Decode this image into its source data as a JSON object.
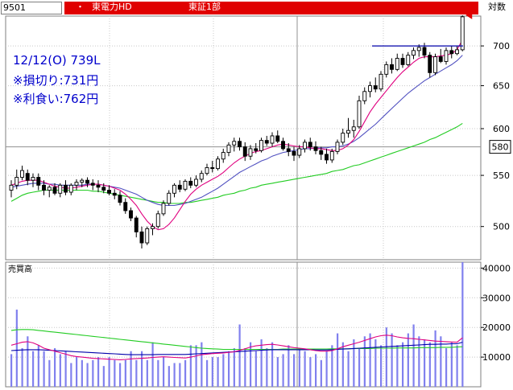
{
  "header": {
    "code": "9501",
    "bullet": "・",
    "name": "東電力HD",
    "market": "東証1部",
    "scale": "対数"
  },
  "annotations": {
    "line1": "12/12(O) 739L",
    "line2": "※損切り:731円",
    "line3": "※利食い:762円",
    "current_price_label": "580"
  },
  "volume_panel": {
    "title": "売買高"
  },
  "colors": {
    "accent": "#e00000",
    "bar_up_outline": "#000000",
    "bar_down": "#000000",
    "ma_short": "#e0007f",
    "ma_mid": "#5050c0",
    "ma_long": "#22cc22",
    "volume_bar": "#8080ee",
    "resistance": "#0000aa",
    "annotation_text": "#0000cc"
  },
  "chart_data": [
    {
      "type": "candlestick",
      "scale": "log",
      "ylim": [
        470,
        740
      ],
      "yticks": [
        500,
        550,
        600,
        650,
        700
      ],
      "highlight_price": 580,
      "resistance_level": 700,
      "candles": [
        {
          "o": 535,
          "h": 545,
          "l": 528,
          "c": 540
        },
        {
          "o": 540,
          "h": 556,
          "l": 536,
          "c": 548
        },
        {
          "o": 548,
          "h": 560,
          "l": 545,
          "c": 555
        },
        {
          "o": 552,
          "h": 556,
          "l": 540,
          "c": 545
        },
        {
          "o": 545,
          "h": 552,
          "l": 538,
          "c": 548
        },
        {
          "o": 548,
          "h": 552,
          "l": 535,
          "c": 540
        },
        {
          "o": 540,
          "h": 545,
          "l": 530,
          "c": 535
        },
        {
          "o": 535,
          "h": 540,
          "l": 528,
          "c": 538
        },
        {
          "o": 538,
          "h": 542,
          "l": 530,
          "c": 532
        },
        {
          "o": 532,
          "h": 542,
          "l": 528,
          "c": 540
        },
        {
          "o": 540,
          "h": 545,
          "l": 530,
          "c": 533
        },
        {
          "o": 533,
          "h": 542,
          "l": 530,
          "c": 540
        },
        {
          "o": 540,
          "h": 546,
          "l": 535,
          "c": 543
        },
        {
          "o": 543,
          "h": 547,
          "l": 538,
          "c": 545
        },
        {
          "o": 545,
          "h": 548,
          "l": 538,
          "c": 542
        },
        {
          "o": 542,
          "h": 546,
          "l": 535,
          "c": 540
        },
        {
          "o": 540,
          "h": 545,
          "l": 533,
          "c": 538
        },
        {
          "o": 538,
          "h": 542,
          "l": 532,
          "c": 535
        },
        {
          "o": 535,
          "h": 540,
          "l": 530,
          "c": 532
        },
        {
          "o": 532,
          "h": 536,
          "l": 526,
          "c": 530
        },
        {
          "o": 530,
          "h": 534,
          "l": 520,
          "c": 523
        },
        {
          "o": 523,
          "h": 527,
          "l": 512,
          "c": 515
        },
        {
          "o": 515,
          "h": 518,
          "l": 505,
          "c": 508
        },
        {
          "o": 508,
          "h": 510,
          "l": 490,
          "c": 495
        },
        {
          "o": 495,
          "h": 500,
          "l": 480,
          "c": 485
        },
        {
          "o": 485,
          "h": 500,
          "l": 483,
          "c": 498
        },
        {
          "o": 498,
          "h": 503,
          "l": 492,
          "c": 500
        },
        {
          "o": 500,
          "h": 515,
          "l": 498,
          "c": 512
        },
        {
          "o": 512,
          "h": 525,
          "l": 510,
          "c": 522
        },
        {
          "o": 522,
          "h": 535,
          "l": 520,
          "c": 532
        },
        {
          "o": 532,
          "h": 542,
          "l": 528,
          "c": 540
        },
        {
          "o": 540,
          "h": 545,
          "l": 533,
          "c": 536
        },
        {
          "o": 536,
          "h": 546,
          "l": 534,
          "c": 544
        },
        {
          "o": 544,
          "h": 548,
          "l": 537,
          "c": 540
        },
        {
          "o": 540,
          "h": 550,
          "l": 538,
          "c": 546
        },
        {
          "o": 546,
          "h": 555,
          "l": 543,
          "c": 552
        },
        {
          "o": 552,
          "h": 562,
          "l": 550,
          "c": 558
        },
        {
          "o": 558,
          "h": 565,
          "l": 553,
          "c": 557
        },
        {
          "o": 557,
          "h": 570,
          "l": 555,
          "c": 567
        },
        {
          "o": 567,
          "h": 578,
          "l": 563,
          "c": 574
        },
        {
          "o": 574,
          "h": 585,
          "l": 570,
          "c": 582
        },
        {
          "o": 582,
          "h": 590,
          "l": 575,
          "c": 586
        },
        {
          "o": 586,
          "h": 590,
          "l": 576,
          "c": 580
        },
        {
          "o": 580,
          "h": 585,
          "l": 565,
          "c": 570
        },
        {
          "o": 570,
          "h": 582,
          "l": 566,
          "c": 578
        },
        {
          "o": 578,
          "h": 584,
          "l": 573,
          "c": 576
        },
        {
          "o": 576,
          "h": 590,
          "l": 574,
          "c": 587
        },
        {
          "o": 587,
          "h": 592,
          "l": 581,
          "c": 584
        },
        {
          "o": 584,
          "h": 596,
          "l": 580,
          "c": 592
        },
        {
          "o": 592,
          "h": 598,
          "l": 584,
          "c": 586
        },
        {
          "o": 586,
          "h": 590,
          "l": 576,
          "c": 578
        },
        {
          "o": 578,
          "h": 584,
          "l": 570,
          "c": 575
        },
        {
          "o": 575,
          "h": 580,
          "l": 565,
          "c": 571
        },
        {
          "o": 571,
          "h": 582,
          "l": 568,
          "c": 578
        },
        {
          "o": 578,
          "h": 588,
          "l": 574,
          "c": 585
        },
        {
          "o": 585,
          "h": 590,
          "l": 576,
          "c": 580
        },
        {
          "o": 580,
          "h": 586,
          "l": 572,
          "c": 576
        },
        {
          "o": 576,
          "h": 580,
          "l": 566,
          "c": 572
        },
        {
          "o": 572,
          "h": 578,
          "l": 562,
          "c": 566
        },
        {
          "o": 566,
          "h": 578,
          "l": 563,
          "c": 575
        },
        {
          "o": 575,
          "h": 588,
          "l": 572,
          "c": 585
        },
        {
          "o": 585,
          "h": 600,
          "l": 582,
          "c": 595
        },
        {
          "o": 595,
          "h": 612,
          "l": 590,
          "c": 598
        },
        {
          "o": 598,
          "h": 610,
          "l": 590,
          "c": 602
        },
        {
          "o": 602,
          "h": 638,
          "l": 600,
          "c": 632
        },
        {
          "o": 632,
          "h": 648,
          "l": 628,
          "c": 643
        },
        {
          "o": 643,
          "h": 655,
          "l": 636,
          "c": 650
        },
        {
          "o": 650,
          "h": 660,
          "l": 642,
          "c": 646
        },
        {
          "o": 646,
          "h": 668,
          "l": 643,
          "c": 664
        },
        {
          "o": 664,
          "h": 680,
          "l": 660,
          "c": 676
        },
        {
          "o": 676,
          "h": 684,
          "l": 665,
          "c": 670
        },
        {
          "o": 670,
          "h": 690,
          "l": 668,
          "c": 684
        },
        {
          "o": 684,
          "h": 690,
          "l": 672,
          "c": 676
        },
        {
          "o": 676,
          "h": 692,
          "l": 674,
          "c": 688
        },
        {
          "o": 688,
          "h": 698,
          "l": 683,
          "c": 694
        },
        {
          "o": 694,
          "h": 702,
          "l": 686,
          "c": 698
        },
        {
          "o": 698,
          "h": 704,
          "l": 684,
          "c": 688
        },
        {
          "o": 688,
          "h": 692,
          "l": 660,
          "c": 666
        },
        {
          "o": 666,
          "h": 690,
          "l": 663,
          "c": 686
        },
        {
          "o": 686,
          "h": 696,
          "l": 678,
          "c": 680
        },
        {
          "o": 680,
          "h": 698,
          "l": 676,
          "c": 694
        },
        {
          "o": 694,
          "h": 700,
          "l": 684,
          "c": 690
        },
        {
          "o": 690,
          "h": 700,
          "l": 688,
          "c": 695
        },
        {
          "o": 695,
          "h": 741,
          "l": 693,
          "c": 739
        }
      ],
      "ma_short": [
        540,
        542,
        544,
        545,
        545,
        545,
        543,
        541,
        539,
        538,
        537,
        537,
        538,
        539,
        540,
        541,
        541,
        540,
        539,
        537,
        535,
        531,
        526,
        520,
        512,
        505,
        500,
        497,
        498,
        502,
        508,
        516,
        524,
        531,
        536,
        540,
        543,
        546,
        549,
        553,
        558,
        563,
        567,
        570,
        573,
        575,
        576,
        578,
        580,
        582,
        583,
        582,
        581,
        580,
        580,
        579,
        578,
        578,
        577,
        576,
        576,
        578,
        582,
        588,
        597,
        608,
        619,
        628,
        636,
        644,
        652,
        660,
        667,
        673,
        679,
        684,
        686,
        686,
        686,
        687,
        688,
        690,
        695,
        708
      ],
      "ma_mid": [
        538,
        539,
        540,
        541,
        542,
        542,
        542,
        541,
        541,
        540,
        540,
        540,
        540,
        540,
        541,
        541,
        541,
        540,
        539,
        538,
        537,
        535,
        533,
        531,
        528,
        525,
        523,
        521,
        520,
        520,
        520,
        521,
        522,
        524,
        526,
        528,
        531,
        534,
        537,
        541,
        545,
        549,
        553,
        556,
        559,
        562,
        565,
        567,
        570,
        572,
        574,
        575,
        576,
        577,
        578,
        578,
        579,
        579,
        579,
        580,
        580,
        581,
        583,
        586,
        590,
        595,
        600,
        605,
        611,
        617,
        623,
        629,
        635,
        641,
        646,
        651,
        656,
        660,
        664,
        668,
        672,
        676,
        681,
        688
      ],
      "ma_long": [
        524,
        527,
        530,
        532,
        533,
        534,
        535,
        535,
        535,
        535,
        535,
        535,
        535,
        535,
        535,
        534,
        534,
        533,
        532,
        531,
        530,
        529,
        528,
        527,
        526,
        525,
        524,
        523,
        523,
        522,
        522,
        522,
        523,
        523,
        524,
        525,
        526,
        527,
        528,
        530,
        531,
        532,
        534,
        535,
        537,
        538,
        540,
        541,
        542,
        543,
        544,
        545,
        546,
        547,
        548,
        549,
        550,
        551,
        552,
        554,
        555,
        556,
        558,
        560,
        561,
        563,
        565,
        567,
        569,
        571,
        573,
        575,
        577,
        579,
        581,
        583,
        585,
        588,
        590,
        593,
        596,
        599,
        602,
        606
      ]
    },
    {
      "type": "bar",
      "title": "売買高",
      "ylim": [
        0,
        42000
      ],
      "yticks": [
        10000,
        20000,
        30000,
        40000
      ],
      "values": [
        11000,
        26000,
        13000,
        17000,
        12000,
        14000,
        12000,
        9000,
        13000,
        11000,
        12000,
        8000,
        10000,
        9000,
        8000,
        9000,
        10000,
        7000,
        10000,
        9000,
        8000,
        9000,
        12000,
        9000,
        12000,
        9000,
        15000,
        9000,
        10000,
        7000,
        8000,
        8000,
        9000,
        14000,
        14000,
        15000,
        9000,
        10000,
        10000,
        11000,
        12000,
        13000,
        21000,
        13000,
        15000,
        12000,
        16000,
        13000,
        15000,
        10000,
        11000,
        14000,
        11000,
        13000,
        12000,
        10000,
        11000,
        9000,
        12000,
        14000,
        18000,
        15000,
        12000,
        16000,
        13000,
        17000,
        18000,
        16000,
        14000,
        20000,
        18000,
        14000,
        15000,
        18000,
        21000,
        17000,
        16000,
        15000,
        19000,
        17000,
        13000,
        15000,
        14000,
        42000
      ],
      "ma_short": [
        14000,
        14500,
        15000,
        15200,
        14800,
        14000,
        13000,
        12500,
        12000,
        11500,
        11000,
        10500,
        10200,
        10000,
        9800,
        9600,
        9500,
        9400,
        9300,
        9200,
        9100,
        9200,
        9400,
        9500,
        9600,
        9700,
        9900,
        10000,
        10100,
        10000,
        9900,
        9800,
        9700,
        10000,
        10400,
        10800,
        11000,
        11200,
        11300,
        11400,
        11600,
        11800,
        12300,
        12800,
        13400,
        13800,
        14000,
        14200,
        14300,
        14100,
        13800,
        13500,
        13200,
        13000,
        12800,
        12500,
        12200,
        12000,
        12000,
        12200,
        12800,
        13500,
        14000,
        14500,
        15000,
        15600,
        16200,
        16800,
        17200,
        17400,
        17200,
        16800,
        16500,
        16300,
        16200,
        16000,
        15800,
        15600,
        15400,
        15300,
        15200,
        15100,
        15000,
        16500
      ],
      "ma_mid": [
        12200,
        12300,
        12400,
        12500,
        12500,
        12500,
        12400,
        12300,
        12200,
        12100,
        12000,
        11900,
        11800,
        11700,
        11600,
        11500,
        11400,
        11300,
        11200,
        11100,
        11000,
        10900,
        10800,
        10800,
        10800,
        10800,
        10800,
        10900,
        10900,
        10900,
        10900,
        10900,
        10900,
        11000,
        11100,
        11200,
        11300,
        11400,
        11500,
        11600,
        11700,
        11800,
        11900,
        12000,
        12100,
        12200,
        12300,
        12400,
        12500,
        12500,
        12500,
        12500,
        12500,
        12500,
        12500,
        12500,
        12400,
        12400,
        12400,
        12500,
        12600,
        12700,
        12800,
        12900,
        13000,
        13100,
        13200,
        13300,
        13400,
        13500,
        13600,
        13700,
        13800,
        13900,
        14000,
        14100,
        14200,
        14300,
        14300,
        14400,
        14400,
        14500,
        14500,
        15000
      ],
      "ma_long": [
        19000,
        19200,
        19300,
        19300,
        19200,
        19000,
        18800,
        18600,
        18400,
        18200,
        18000,
        17800,
        17600,
        17400,
        17200,
        17000,
        16800,
        16600,
        16400,
        16200,
        16000,
        15800,
        15600,
        15400,
        15200,
        15000,
        14800,
        14600,
        14400,
        14200,
        14000,
        13800,
        13600,
        13400,
        13200,
        13000,
        12900,
        12800,
        12700,
        12600,
        12600,
        12600,
        12600,
        12600,
        12600,
        12600,
        12600,
        12600,
        12600,
        12600,
        12700,
        12700,
        12700,
        12700,
        12700,
        12700,
        12700,
        12700,
        12700,
        12800,
        12800,
        12800,
        12800,
        12900,
        12900,
        12900,
        12900,
        13000,
        13000,
        13000,
        13000,
        13100,
        13100,
        13100,
        13100,
        13200,
        13200,
        13200,
        13200,
        13300,
        13300,
        13300,
        13400,
        13500
      ]
    }
  ]
}
